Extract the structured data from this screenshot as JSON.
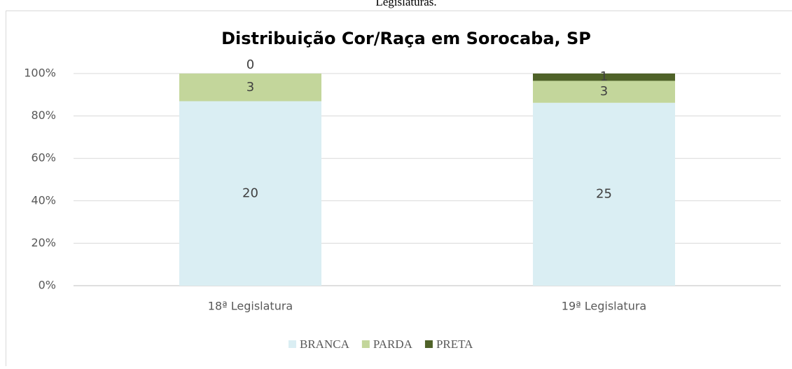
{
  "caption": "Legislaturas.",
  "chart_data": {
    "type": "bar",
    "stacking": "percent",
    "title": "Distribuição Cor/Raça em Sorocaba, SP",
    "categories": [
      "18ª Legislatura",
      "19ª Legislatura"
    ],
    "series": [
      {
        "name": "BRANCA",
        "color": "#daeef3",
        "values": [
          20,
          25
        ]
      },
      {
        "name": "PARDA",
        "color": "#c3d69b",
        "values": [
          3,
          3
        ]
      },
      {
        "name": "PRETA",
        "color": "#4f6228",
        "values": [
          0,
          1
        ]
      }
    ],
    "ylim": [
      0,
      100
    ],
    "yticks": [
      {
        "value": 0,
        "label": "0%"
      },
      {
        "value": 20,
        "label": "20%"
      },
      {
        "value": 40,
        "label": "40%"
      },
      {
        "value": 60,
        "label": "60%"
      },
      {
        "value": 80,
        "label": "80%"
      },
      {
        "value": 100,
        "label": "100%"
      }
    ],
    "grid": true,
    "legend": "bottom"
  }
}
